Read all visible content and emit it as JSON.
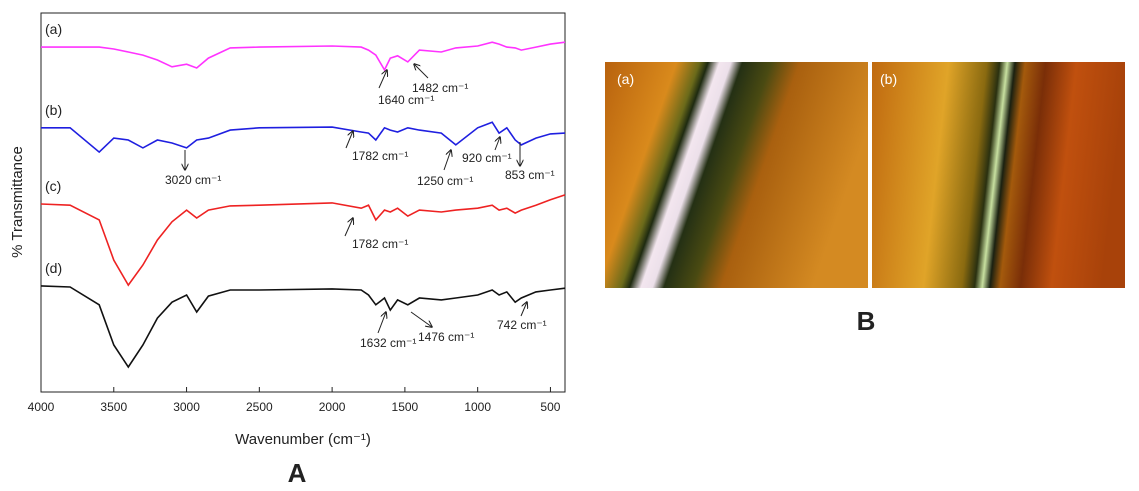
{
  "chart_data": {
    "type": "line",
    "xlabel": "Wavenumber (cm⁻¹)",
    "ylabel": "% Transmittance",
    "xlim": [
      4000,
      400
    ],
    "ylim": [
      0,
      100
    ],
    "xticks": [
      4000,
      3500,
      3000,
      2500,
      2000,
      1500,
      1000,
      500
    ],
    "x": [
      4000,
      3800,
      3600,
      3500,
      3400,
      3300,
      3200,
      3100,
      3000,
      2930,
      2850,
      2700,
      2500,
      2000,
      1800,
      1750,
      1700,
      1640,
      1600,
      1550,
      1480,
      1400,
      1250,
      1150,
      1000,
      900,
      853,
      800,
      742,
      700,
      600,
      500,
      400
    ],
    "series": [
      {
        "name": "(a)",
        "color": "#ff33ff",
        "values": [
          91.0,
          91.0,
          91.0,
          90.5,
          89.7,
          88.9,
          87.6,
          85.8,
          86.5,
          85.5,
          88.1,
          90.8,
          91.0,
          91.3,
          91.0,
          90.2,
          88.9,
          85.0,
          88.1,
          88.7,
          87.1,
          90.2,
          89.7,
          90.8,
          91.3,
          92.3,
          91.8,
          91.0,
          90.8,
          90.2,
          91.0,
          91.8,
          92.3
        ]
      },
      {
        "name": "(b)",
        "color": "#1f1fe0",
        "values": [
          69.7,
          69.7,
          63.3,
          67.0,
          66.5,
          64.4,
          66.5,
          65.7,
          64.4,
          66.5,
          67.0,
          69.1,
          69.7,
          69.9,
          68.6,
          68.3,
          66.5,
          69.7,
          69.1,
          68.6,
          69.7,
          69.1,
          68.3,
          65.2,
          69.7,
          71.2,
          68.3,
          69.7,
          66.5,
          65.2,
          67.0,
          68.1,
          68.3
        ]
      },
      {
        "name": "(c)",
        "color": "#ee2222",
        "values": [
          49.6,
          49.3,
          45.4,
          34.8,
          28.2,
          33.5,
          40.1,
          44.9,
          48.0,
          45.9,
          48.0,
          49.1,
          49.3,
          49.9,
          48.5,
          49.3,
          45.4,
          48.0,
          47.5,
          48.5,
          46.4,
          48.0,
          47.5,
          48.0,
          48.5,
          49.3,
          48.0,
          48.5,
          47.2,
          48.0,
          49.3,
          50.7,
          52.0
        ]
      },
      {
        "name": "(d)",
        "color": "#111111",
        "values": [
          28.0,
          27.7,
          23.0,
          12.4,
          6.6,
          12.4,
          19.5,
          23.7,
          25.6,
          21.1,
          25.3,
          26.9,
          26.9,
          27.2,
          26.9,
          25.6,
          23.0,
          24.8,
          21.6,
          24.3,
          23.0,
          24.8,
          24.3,
          24.8,
          25.6,
          26.9,
          25.6,
          26.4,
          23.7,
          24.8,
          26.4,
          26.9,
          27.4
        ]
      }
    ],
    "annotations": [
      "1640 cm⁻¹",
      "1482 cm⁻¹",
      "1782 cm⁻¹",
      "3020 cm⁻¹",
      "920 cm⁻¹",
      "853 cm⁻¹",
      "1250 cm⁻¹",
      "1782 cm⁻¹",
      "1632 cm⁻¹",
      "1476 cm⁻¹",
      "742 cm⁻¹"
    ]
  },
  "figure": {
    "panel_labels": [
      "A",
      "B"
    ],
    "image_labels": [
      "(a)",
      "(b)"
    ]
  }
}
